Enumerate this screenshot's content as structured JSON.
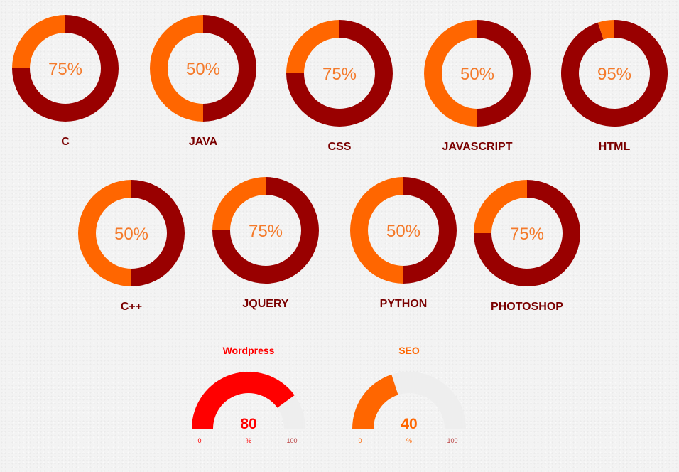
{
  "colors": {
    "dark_red": "#990000",
    "orange": "#ff6600",
    "label": "#7a0000",
    "percent_text": "#f47a2a",
    "gauge_track": "#eeeeee"
  },
  "chart_data": [
    {
      "type": "pie",
      "variant": "donut",
      "items": [
        {
          "label": "C",
          "value": 75,
          "display": "75%"
        },
        {
          "label": "JAVA",
          "value": 50,
          "display": "50%"
        },
        {
          "label": "CSS",
          "value": 75,
          "display": "75%"
        },
        {
          "label": "JAVASCRIPT",
          "value": 50,
          "display": "50%"
        },
        {
          "label": "HTML",
          "value": 95,
          "display": "95%"
        },
        {
          "label": "C++",
          "value": 50,
          "display": "50%"
        },
        {
          "label": "JQUERY",
          "value": 75,
          "display": "75%"
        },
        {
          "label": "PYTHON",
          "value": 50,
          "display": "50%"
        },
        {
          "label": "PHOTOSHOP",
          "value": 75,
          "display": "75%"
        }
      ]
    },
    {
      "type": "gauge",
      "items": [
        {
          "title": "Wordpress",
          "value": 80,
          "value_text": "80",
          "unit": "%",
          "min": 0,
          "max": 100,
          "min_label": "0",
          "max_label": "100",
          "color": "#ff0000"
        },
        {
          "title": "SEO",
          "value": 40,
          "value_text": "40",
          "unit": "%",
          "min": 0,
          "max": 100,
          "min_label": "0",
          "max_label": "100",
          "color": "#ff6600"
        }
      ]
    }
  ]
}
